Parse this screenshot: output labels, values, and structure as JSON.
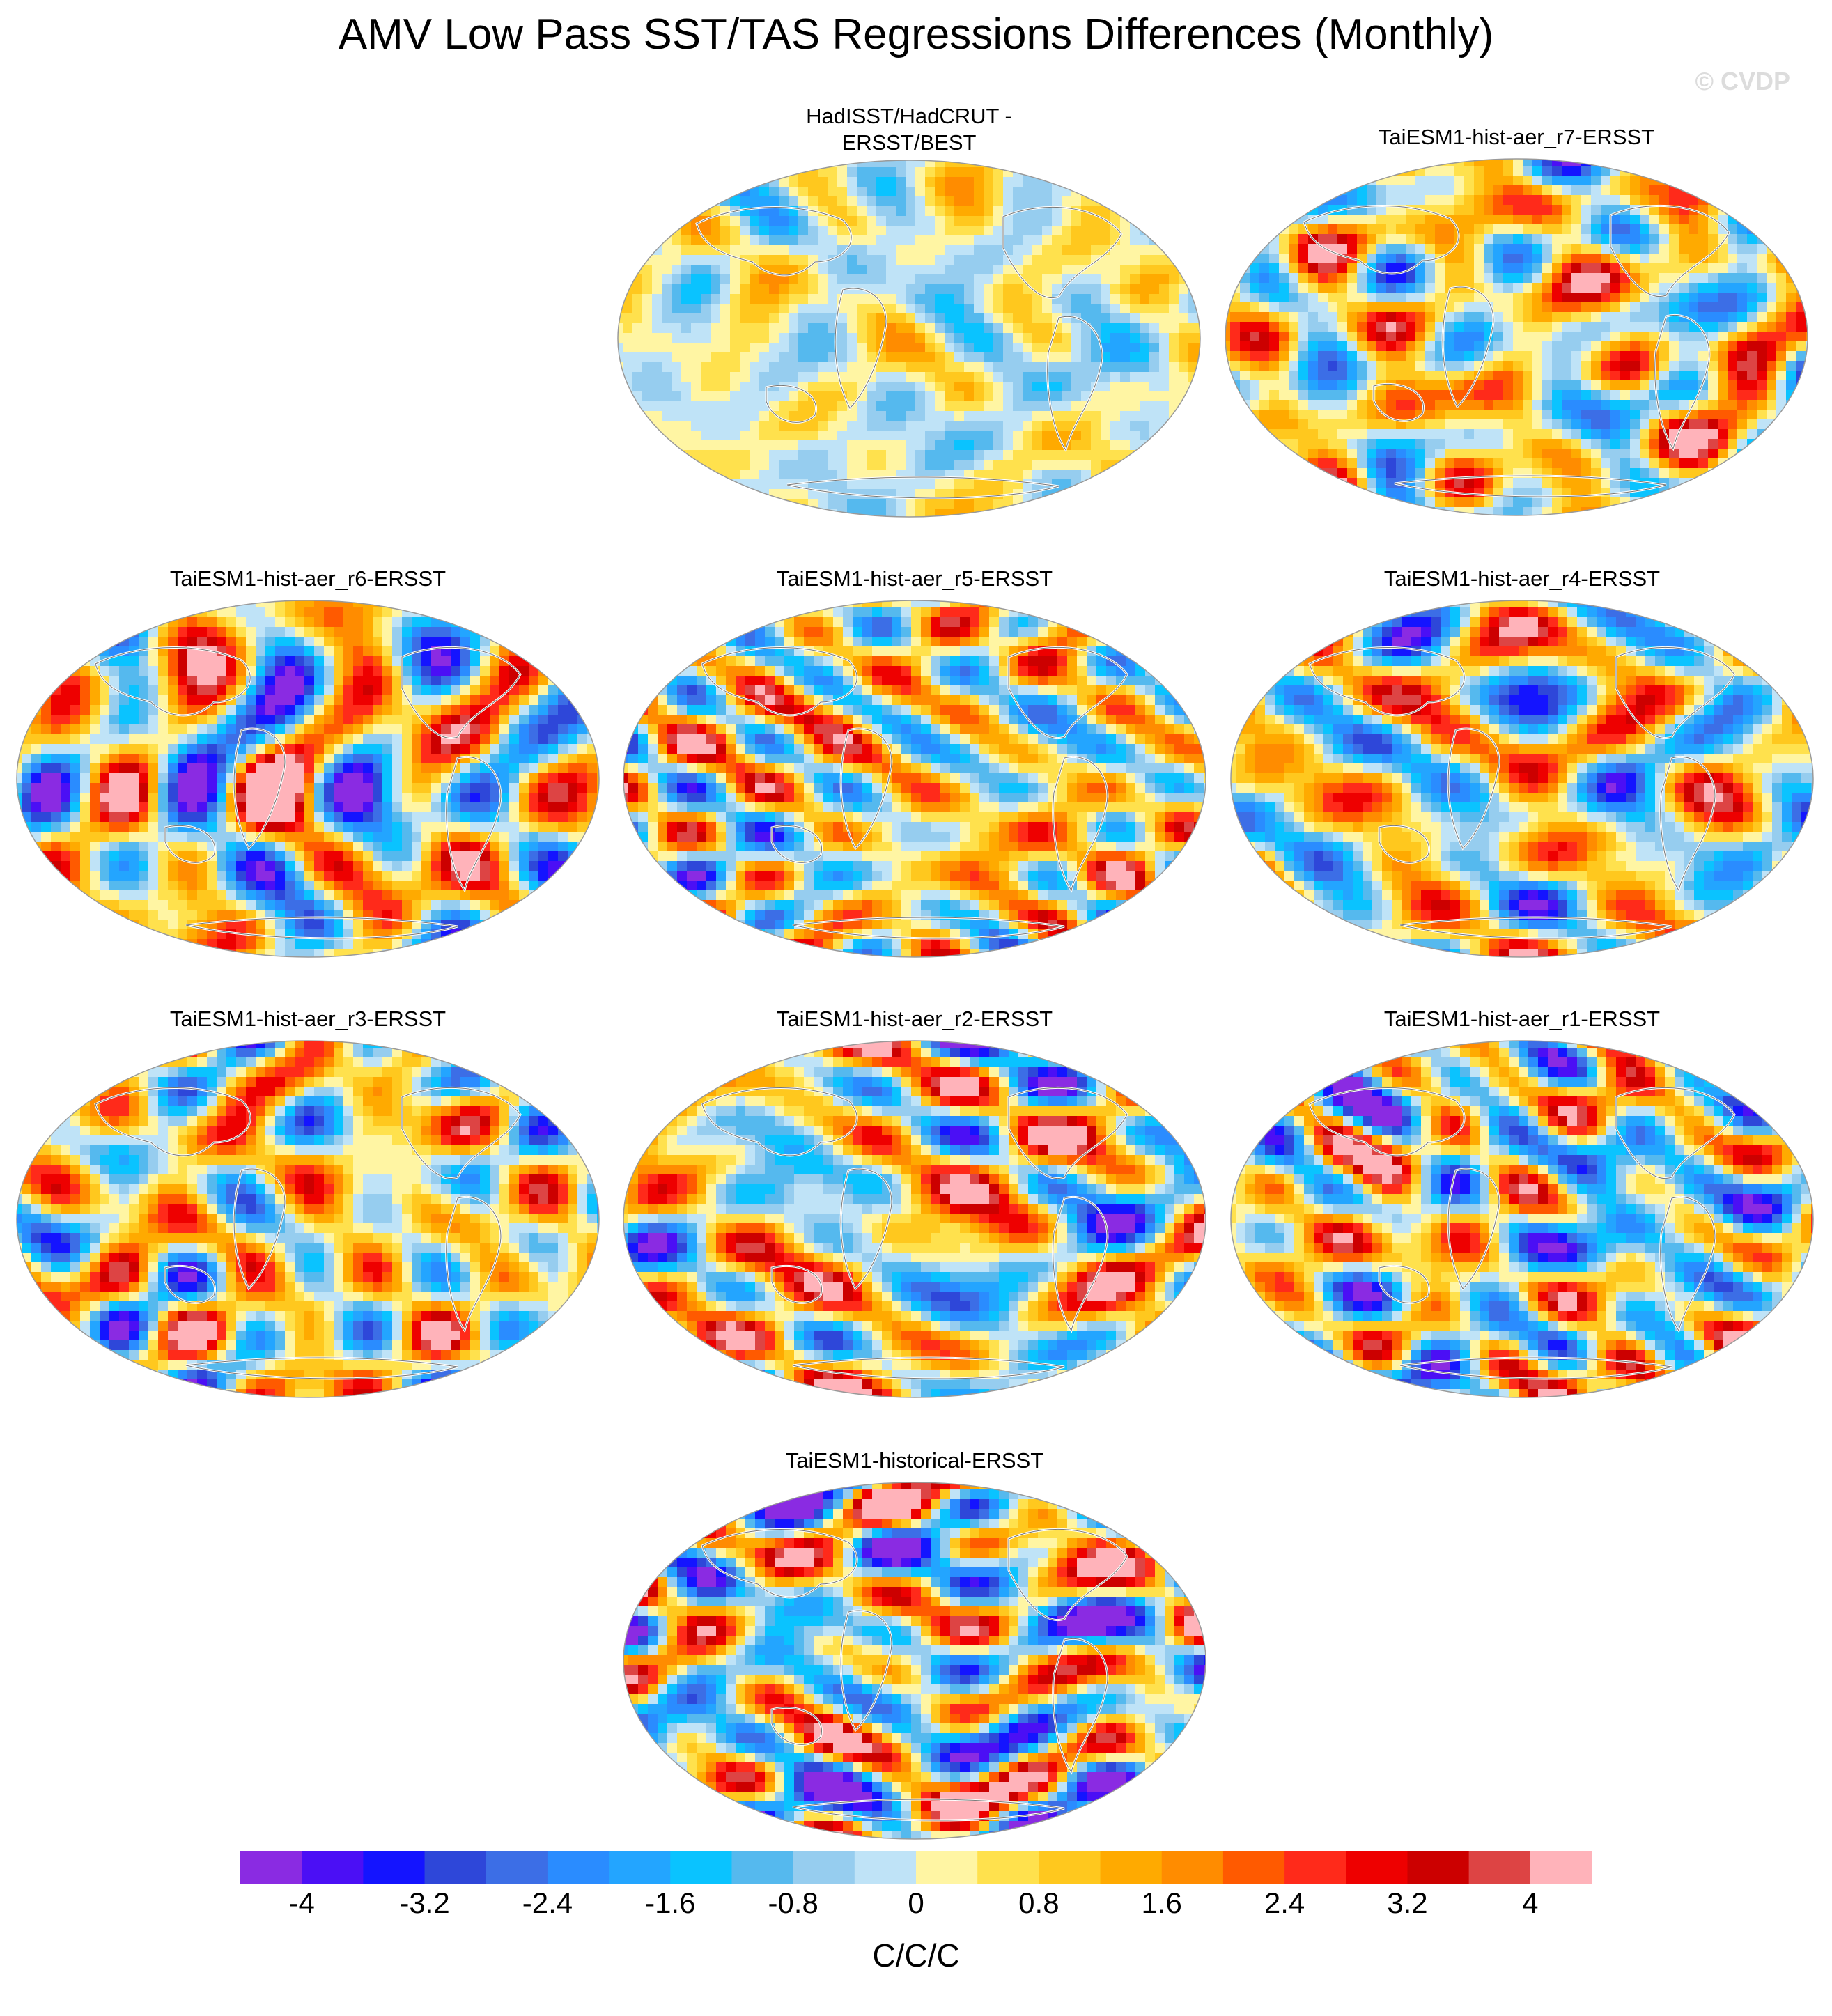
{
  "title": "AMV Low Pass SST/TAS Regressions Differences (Monthly)",
  "credit": "© CVDP",
  "panels": [
    {
      "title_line1": "HadISST/HadCRUT -",
      "title_line2": "ERSST/BEST",
      "palette_bias": 0,
      "seed": 11,
      "amp": 0.35
    },
    {
      "title_line1": "TaiESM1-hist-aer_r7-ERSST",
      "title_line2": "",
      "palette_bias": 0.1,
      "seed": 7,
      "amp": 1.0
    },
    {
      "title_line1": "TaiESM1-hist-aer_r6-ERSST",
      "title_line2": "",
      "palette_bias": 0.05,
      "seed": 6,
      "amp": 0.9
    },
    {
      "title_line1": "TaiESM1-hist-aer_r5-ERSST",
      "title_line2": "",
      "palette_bias": 0.1,
      "seed": 5,
      "amp": 0.95
    },
    {
      "title_line1": "TaiESM1-hist-aer_r4-ERSST",
      "title_line2": "",
      "palette_bias": 0.05,
      "seed": 4,
      "amp": 0.9
    },
    {
      "title_line1": "TaiESM1-hist-aer_r3-ERSST",
      "title_line2": "",
      "palette_bias": 0.1,
      "seed": 3,
      "amp": 0.95
    },
    {
      "title_line1": "TaiESM1-hist-aer_r2-ERSST",
      "title_line2": "",
      "palette_bias": 0.1,
      "seed": 2,
      "amp": 1.0
    },
    {
      "title_line1": "TaiESM1-hist-aer_r1-ERSST",
      "title_line2": "",
      "palette_bias": 0.0,
      "seed": 1,
      "amp": 0.95
    },
    {
      "title_line1": "TaiESM1-historical-ERSST",
      "title_line2": "",
      "palette_bias": 0.0,
      "seed": 9,
      "amp": 1.15
    }
  ],
  "colorbar": {
    "colors": [
      "#8a2be2",
      "#4b0ff5",
      "#1414ff",
      "#2e47d9",
      "#3c6ee6",
      "#2a8cff",
      "#23a5ff",
      "#0ac3ff",
      "#55b9ee",
      "#96cdef",
      "#bfe3f7",
      "#fff5a3",
      "#ffe14d",
      "#ffc81e",
      "#ffaa00",
      "#ff8c00",
      "#ff5a00",
      "#ff2a1a",
      "#ee0000",
      "#cc0000",
      "#dd4444",
      "#ffb3ba"
    ],
    "tick_labels": [
      "-4",
      "-3.2",
      "-2.4",
      "-1.6",
      "-0.8",
      "0",
      "0.8",
      "1.6",
      "2.4",
      "3.2",
      "4"
    ],
    "units": "C/C/C"
  }
}
